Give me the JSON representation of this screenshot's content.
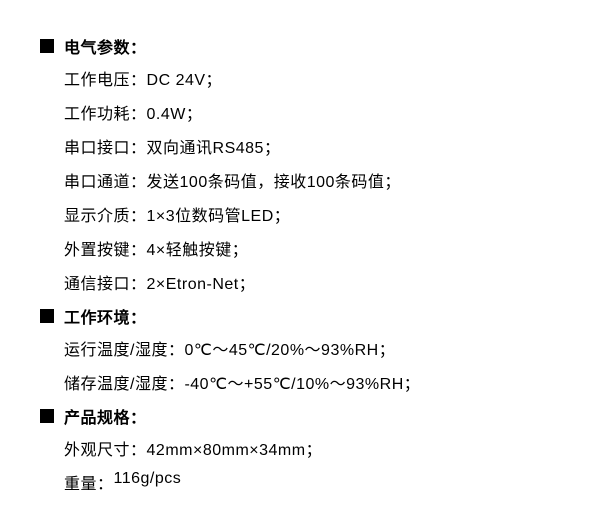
{
  "sections": [
    {
      "title": "电气参数：",
      "items": [
        {
          "label": "工作电压：",
          "value": "DC 24V；"
        },
        {
          "label": "工作功耗：",
          "value": "0.4W；"
        },
        {
          "label": "串口接口：",
          "value": "双向通讯RS485；"
        },
        {
          "label": "串口通道：",
          "value": "发送100条码值，接收100条码值；"
        },
        {
          "label": "显示介质：",
          "value": "1×3位数码管LED；"
        },
        {
          "label": "外置按键：",
          "value": "4×轻触按键；"
        },
        {
          "label": "通信接口：",
          "value": "2×Etron-Net；"
        }
      ]
    },
    {
      "title": "工作环境：",
      "items": [
        {
          "label": "运行温度/湿度：",
          "value": "0℃～45℃/20%～93%RH；"
        },
        {
          "label": "储存温度/湿度：",
          "value": "-40℃～+55℃/10%～93%RH；"
        }
      ]
    },
    {
      "title": "产品规格：",
      "items": [
        {
          "label": "外观尺寸：",
          "value": "42mm×80mm×34mm；"
        },
        {
          "label": "重量：",
          "value": "116g/pcs"
        }
      ]
    }
  ],
  "styling": {
    "background_color": "#ffffff",
    "text_color": "#000000",
    "bullet_color": "#000000",
    "font_size": 16,
    "line_spacing": 10,
    "indent": 24
  }
}
